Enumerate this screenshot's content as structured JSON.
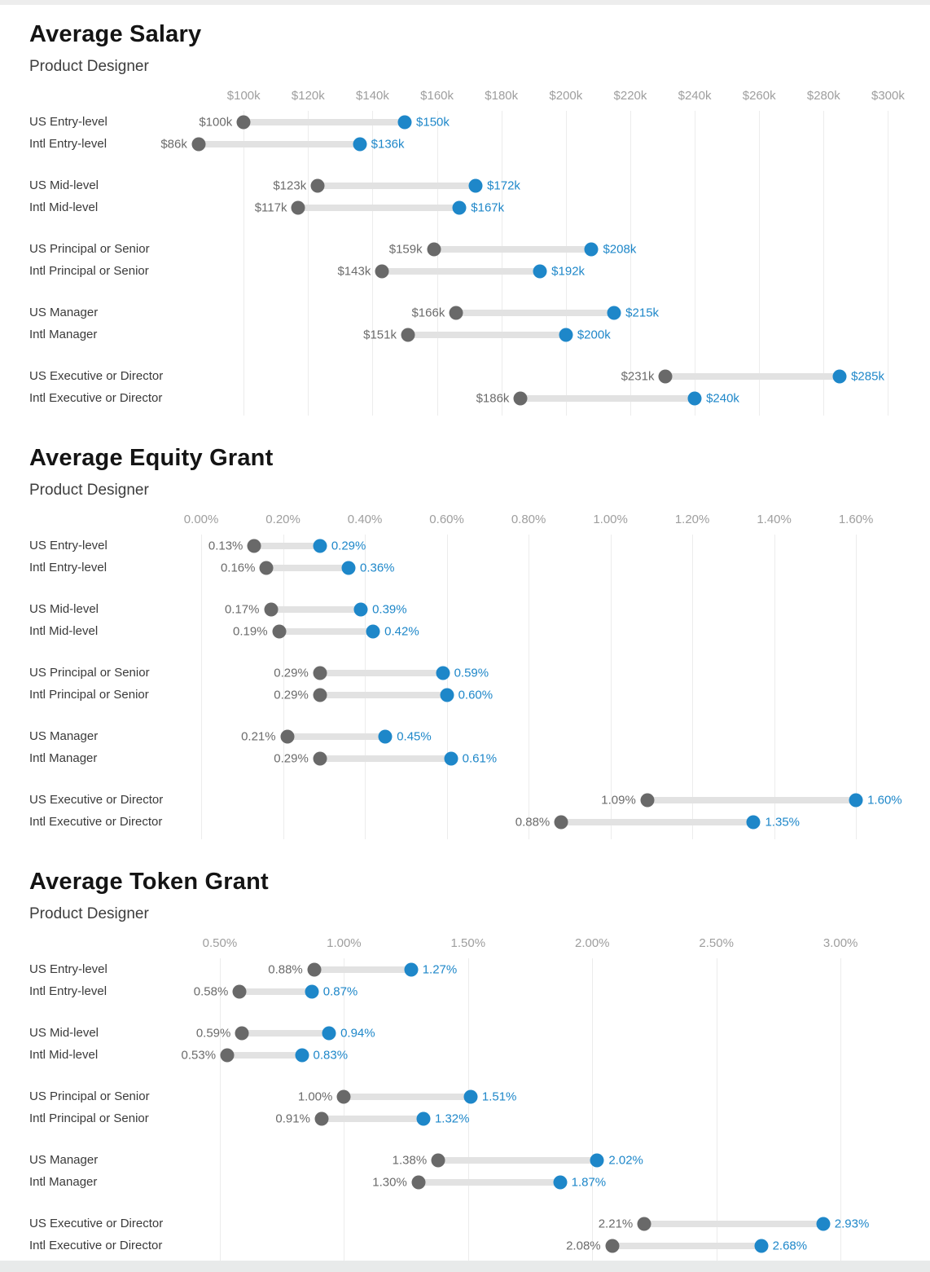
{
  "colors": {
    "dot_max_blue": "#1e87c9",
    "dot_min_gray": "#696969",
    "bar_gray": "#e2e2e2",
    "gridline": "#ececec",
    "axis_label": "#9e9e9e",
    "min_value_label": "#6b6b6b",
    "max_value_label": "#1e87c9",
    "row_label": "#3a3a3a",
    "title": "#141414",
    "subtitle": "#3d3d3d"
  },
  "chart_data": [
    {
      "type": "dumbbell",
      "title": "Average Salary",
      "subtitle": "Product Designer",
      "axis_ticks": [
        "$100k",
        "$120k",
        "$140k",
        "$160k",
        "$180k",
        "$200k",
        "$220k",
        "$240k",
        "$260k",
        "$280k",
        "$300k"
      ],
      "tick_values": [
        100,
        120,
        140,
        160,
        180,
        200,
        220,
        240,
        260,
        280,
        300
      ],
      "domain": [
        82.5,
        310
      ],
      "grid": true,
      "rows": [
        {
          "label": "US Entry-level",
          "min": 100,
          "max": 150,
          "min_label": "$100k",
          "max_label": "$150k"
        },
        {
          "label": "Intl Entry-level",
          "min": 86,
          "max": 136,
          "min_label": "$86k",
          "max_label": "$136k"
        },
        {
          "label": "US Mid-level",
          "min": 123,
          "max": 172,
          "min_label": "$123k",
          "max_label": "$172k"
        },
        {
          "label": "Intl Mid-level",
          "min": 117,
          "max": 167,
          "min_label": "$117k",
          "max_label": "$167k"
        },
        {
          "label": "US Principal or Senior",
          "min": 159,
          "max": 208,
          "min_label": "$159k",
          "max_label": "$208k"
        },
        {
          "label": "Intl Principal or Senior",
          "min": 143,
          "max": 192,
          "min_label": "$143k",
          "max_label": "$192k"
        },
        {
          "label": "US Manager",
          "min": 166,
          "max": 215,
          "min_label": "$166k",
          "max_label": "$215k"
        },
        {
          "label": "Intl Manager",
          "min": 151,
          "max": 200,
          "min_label": "$151k",
          "max_label": "$200k"
        },
        {
          "label": "US Executive or Director",
          "min": 231,
          "max": 285,
          "min_label": "$231k",
          "max_label": "$285k"
        },
        {
          "label": "Intl Executive or Director",
          "min": 186,
          "max": 240,
          "min_label": "$186k",
          "max_label": "$240k"
        }
      ]
    },
    {
      "type": "dumbbell",
      "title": "Average Equity Grant",
      "subtitle": "Product Designer",
      "axis_ticks": [
        "0.00%",
        "0.20%",
        "0.40%",
        "0.60%",
        "0.80%",
        "1.00%",
        "1.20%",
        "1.40%",
        "1.60%"
      ],
      "tick_values": [
        0.0,
        0.2,
        0.4,
        0.6,
        0.8,
        1.0,
        1.2,
        1.4,
        1.6
      ],
      "domain": [
        -0.034,
        1.757
      ],
      "grid": true,
      "rows": [
        {
          "label": "US Entry-level",
          "min": 0.13,
          "max": 0.29,
          "min_label": "0.13%",
          "max_label": "0.29%"
        },
        {
          "label": "Intl Entry-level",
          "min": 0.16,
          "max": 0.36,
          "min_label": "0.16%",
          "max_label": "0.36%"
        },
        {
          "label": "US Mid-level",
          "min": 0.17,
          "max": 0.39,
          "min_label": "0.17%",
          "max_label": "0.39%"
        },
        {
          "label": "Intl Mid-level",
          "min": 0.19,
          "max": 0.42,
          "min_label": "0.19%",
          "max_label": "0.42%"
        },
        {
          "label": "US Principal or Senior",
          "min": 0.29,
          "max": 0.59,
          "min_label": "0.29%",
          "max_label": "0.59%"
        },
        {
          "label": "Intl Principal or Senior",
          "min": 0.29,
          "max": 0.6,
          "min_label": "0.29%",
          "max_label": "0.60%"
        },
        {
          "label": "US Manager",
          "min": 0.21,
          "max": 0.45,
          "min_label": "0.21%",
          "max_label": "0.45%"
        },
        {
          "label": "Intl Manager",
          "min": 0.29,
          "max": 0.61,
          "min_label": "0.29%",
          "max_label": "0.61%"
        },
        {
          "label": "US Executive or Director",
          "min": 1.09,
          "max": 1.6,
          "min_label": "1.09%",
          "max_label": "1.60%"
        },
        {
          "label": "Intl Executive or Director",
          "min": 0.88,
          "max": 1.35,
          "min_label": "0.88%",
          "max_label": "1.35%"
        }
      ]
    },
    {
      "type": "dumbbell",
      "title": "Average Token Grant",
      "subtitle": "Product Designer",
      "axis_ticks": [
        "0.50%",
        "1.00%",
        "1.50%",
        "2.00%",
        "2.50%",
        "3.00%"
      ],
      "tick_values": [
        0.5,
        1.0,
        1.5,
        2.0,
        2.5,
        3.0
      ],
      "domain": [
        0.369,
        3.321
      ],
      "grid": true,
      "rows": [
        {
          "label": "US Entry-level",
          "min": 0.88,
          "max": 1.27,
          "min_label": "0.88%",
          "max_label": "1.27%"
        },
        {
          "label": "Intl Entry-level",
          "min": 0.58,
          "max": 0.87,
          "min_label": "0.58%",
          "max_label": "0.87%"
        },
        {
          "label": "US Mid-level",
          "min": 0.59,
          "max": 0.94,
          "min_label": "0.59%",
          "max_label": "0.94%"
        },
        {
          "label": "Intl Mid-level",
          "min": 0.53,
          "max": 0.83,
          "min_label": "0.53%",
          "max_label": "0.83%"
        },
        {
          "label": "US Principal or Senior",
          "min": 1.0,
          "max": 1.51,
          "min_label": "1.00%",
          "max_label": "1.51%"
        },
        {
          "label": "Intl Principal or Senior",
          "min": 0.91,
          "max": 1.32,
          "min_label": "0.91%",
          "max_label": "1.32%"
        },
        {
          "label": "US Manager",
          "min": 1.38,
          "max": 2.02,
          "min_label": "1.38%",
          "max_label": "2.02%"
        },
        {
          "label": "Intl Manager",
          "min": 1.3,
          "max": 1.87,
          "min_label": "1.30%",
          "max_label": "1.87%"
        },
        {
          "label": "US Executive or Director",
          "min": 2.21,
          "max": 2.93,
          "min_label": "2.21%",
          "max_label": "2.93%"
        },
        {
          "label": "Intl Executive or Director",
          "min": 2.08,
          "max": 2.68,
          "min_label": "2.08%",
          "max_label": "2.68%"
        }
      ]
    }
  ]
}
